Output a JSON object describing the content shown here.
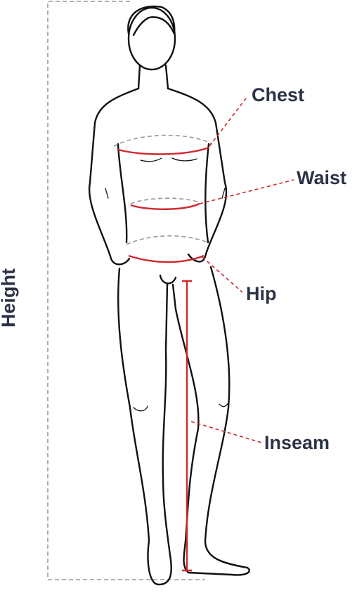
{
  "labels": {
    "chest": "Chest",
    "waist": "Waist",
    "hip": "Hip",
    "inseam": "Inseam",
    "height": "Height"
  }
}
